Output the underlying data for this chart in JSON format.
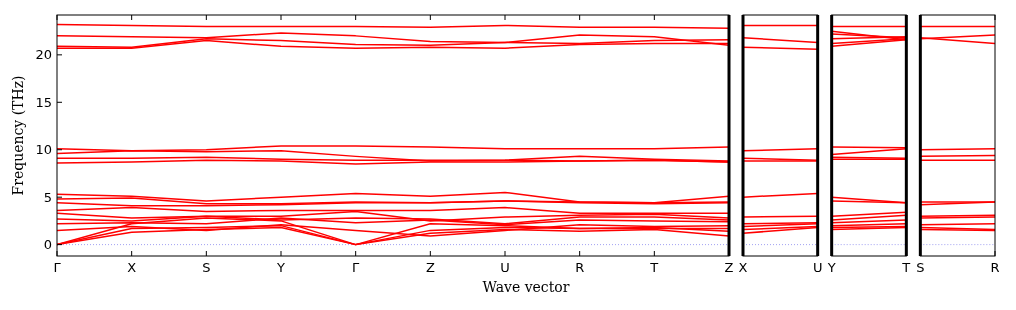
{
  "chart_data": [
    {
      "type": "line",
      "ylabel": "Frequency (THz)",
      "xlabel": "Wave vector",
      "categories": [
        "Γ",
        "X",
        "S",
        "Y",
        "Γ",
        "Z",
        "U",
        "R",
        "T",
        "Z"
      ],
      "ylim": [
        -1.2,
        24.2
      ],
      "yticks": [
        0,
        5,
        10,
        15,
        20
      ],
      "tick_labels": true,
      "ref_lines": [
        {
          "axis": "y",
          "value": 0,
          "color": "#8888ee",
          "line_style": "dotted"
        }
      ],
      "series": [
        {
          "color": "#ff0000",
          "values": [
            23.2,
            23.1,
            23.0,
            23.0,
            23.0,
            22.9,
            23.1,
            22.9,
            22.9,
            22.8
          ]
        },
        {
          "color": "#ff0000",
          "values": [
            22.0,
            21.9,
            21.8,
            22.3,
            22.0,
            21.4,
            21.3,
            22.1,
            21.9,
            21.0
          ]
        },
        {
          "color": "#ff0000",
          "values": [
            20.9,
            20.8,
            21.7,
            21.5,
            21.1,
            21.0,
            21.3,
            21.2,
            21.5,
            21.6
          ]
        },
        {
          "color": "#ff0000",
          "values": [
            20.7,
            20.7,
            21.5,
            20.9,
            20.7,
            20.8,
            20.7,
            21.1,
            21.2,
            21.2
          ]
        },
        {
          "color": "#ff0000",
          "values": [
            10.1,
            9.9,
            10.0,
            10.4,
            10.4,
            10.3,
            10.1,
            10.1,
            10.1,
            10.3
          ]
        },
        {
          "color": "#ff0000",
          "values": [
            9.6,
            9.9,
            9.8,
            9.9,
            9.3,
            8.8,
            8.9,
            9.3,
            9.0,
            8.8
          ]
        },
        {
          "color": "#ff0000",
          "values": [
            9.1,
            9.1,
            9.2,
            9.0,
            8.9,
            8.9,
            8.9,
            8.8,
            8.9,
            8.7
          ]
        },
        {
          "color": "#ff0000",
          "values": [
            8.6,
            8.7,
            8.9,
            8.8,
            8.5,
            8.7,
            8.7,
            8.8,
            8.9,
            8.7
          ]
        },
        {
          "color": "#ff0000",
          "values": [
            5.3,
            5.1,
            4.6,
            5.0,
            5.4,
            5.1,
            5.5,
            4.5,
            4.4,
            5.1
          ]
        },
        {
          "color": "#ff0000",
          "values": [
            4.8,
            4.9,
            4.3,
            4.3,
            4.5,
            4.4,
            4.6,
            4.5,
            4.4,
            4.5
          ]
        },
        {
          "color": "#ff0000",
          "values": [
            4.4,
            4.1,
            4.1,
            4.2,
            4.4,
            4.4,
            4.6,
            4.4,
            4.3,
            4.4
          ]
        },
        {
          "color": "#ff0000",
          "values": [
            0,
            1.3,
            1.6,
            1.8,
            0,
            1.2,
            1.6,
            1.4,
            1.6,
            0.9
          ]
        },
        {
          "color": "#ff0000",
          "values": [
            0,
            1.7,
            1.8,
            2.0,
            0,
            1.5,
            1.8,
            1.7,
            1.8,
            1.4
          ]
        },
        {
          "color": "#ff0000",
          "values": [
            0,
            2.2,
            2.8,
            2.5,
            0,
            2.2,
            2.0,
            1.7,
            1.7,
            1.7
          ]
        },
        {
          "color": "#ff0000",
          "values": [
            1.5,
            1.9,
            1.5,
            2.1,
            1.5,
            0.9,
            1.5,
            2.1,
            1.9,
            2.0
          ]
        },
        {
          "color": "#ff0000",
          "values": [
            2.2,
            2.3,
            2.2,
            2.8,
            2.3,
            2.6,
            2.1,
            2.6,
            2.5,
            2.4
          ]
        },
        {
          "color": "#ff0000",
          "values": [
            2.7,
            2.5,
            3.0,
            2.6,
            2.8,
            2.7,
            2.2,
            2.9,
            2.9,
            2.6
          ]
        },
        {
          "color": "#ff0000",
          "values": [
            3.3,
            2.8,
            3.0,
            3.0,
            3.5,
            2.5,
            2.9,
            3.1,
            3.2,
            2.8
          ]
        },
        {
          "color": "#ff0000",
          "values": [
            3.6,
            3.9,
            3.5,
            3.6,
            3.6,
            3.6,
            3.9,
            3.3,
            3.3,
            3.3
          ]
        }
      ]
    },
    {
      "type": "line",
      "categories": [
        "X",
        "U"
      ],
      "ylim": [
        -1.2,
        24.2
      ],
      "yticks": [
        0,
        5,
        10,
        15,
        20
      ],
      "tick_labels": "x",
      "ref_lines": [
        {
          "axis": "y",
          "value": 0,
          "color": "#8888ee",
          "line_style": "dotted"
        }
      ],
      "series": [
        {
          "color": "#ff0000",
          "values": [
            23.1,
            23.1
          ]
        },
        {
          "color": "#ff0000",
          "values": [
            21.8,
            21.3
          ]
        },
        {
          "color": "#ff0000",
          "values": [
            20.8,
            20.6
          ]
        },
        {
          "color": "#ff0000",
          "values": [
            9.9,
            10.1
          ]
        },
        {
          "color": "#ff0000",
          "values": [
            9.1,
            8.9
          ]
        },
        {
          "color": "#ff0000",
          "values": [
            8.8,
            8.8
          ]
        },
        {
          "color": "#ff0000",
          "values": [
            5.0,
            5.4
          ]
        },
        {
          "color": "#ff0000",
          "values": [
            2.9,
            3.0
          ]
        },
        {
          "color": "#ff0000",
          "values": [
            2.2,
            2.3
          ]
        },
        {
          "color": "#ff0000",
          "values": [
            1.9,
            2.2
          ]
        },
        {
          "color": "#ff0000",
          "values": [
            1.6,
            1.9
          ]
        },
        {
          "color": "#ff0000",
          "values": [
            1.2,
            1.8
          ]
        }
      ]
    },
    {
      "type": "line",
      "categories": [
        "Y",
        "T"
      ],
      "ylim": [
        -1.2,
        24.2
      ],
      "yticks": [
        0,
        5,
        10,
        15,
        20
      ],
      "tick_labels": "x",
      "ref_lines": [
        {
          "axis": "y",
          "value": 0,
          "color": "#8888ee",
          "line_style": "dotted"
        }
      ],
      "series": [
        {
          "color": "#ff0000",
          "values": [
            23.0,
            23.0
          ]
        },
        {
          "color": "#ff0000",
          "values": [
            22.5,
            21.6
          ]
        },
        {
          "color": "#ff0000",
          "values": [
            22.2,
            21.8
          ]
        },
        {
          "color": "#ff0000",
          "values": [
            21.7,
            21.9
          ]
        },
        {
          "color": "#ff0000",
          "values": [
            21.2,
            21.7
          ]
        },
        {
          "color": "#ff0000",
          "values": [
            20.9,
            21.6
          ]
        },
        {
          "color": "#ff0000",
          "values": [
            10.3,
            10.2
          ]
        },
        {
          "color": "#ff0000",
          "values": [
            9.5,
            10.1
          ]
        },
        {
          "color": "#ff0000",
          "values": [
            9.2,
            9.1
          ]
        },
        {
          "color": "#ff0000",
          "values": [
            9.0,
            9.0
          ]
        },
        {
          "color": "#ff0000",
          "values": [
            5.0,
            4.4
          ]
        },
        {
          "color": "#ff0000",
          "values": [
            4.6,
            4.4
          ]
        },
        {
          "color": "#ff0000",
          "values": [
            3.0,
            3.4
          ]
        },
        {
          "color": "#ff0000",
          "values": [
            2.6,
            3.1
          ]
        },
        {
          "color": "#ff0000",
          "values": [
            2.3,
            2.6
          ]
        },
        {
          "color": "#ff0000",
          "values": [
            2.0,
            2.2
          ]
        },
        {
          "color": "#ff0000",
          "values": [
            1.8,
            1.9
          ]
        },
        {
          "color": "#ff0000",
          "values": [
            1.6,
            1.8
          ]
        }
      ]
    },
    {
      "type": "line",
      "categories": [
        "S",
        "R"
      ],
      "ylim": [
        -1.2,
        24.2
      ],
      "yticks": [
        0,
        5,
        10,
        15,
        20
      ],
      "tick_labels": "x",
      "ref_lines": [
        {
          "axis": "y",
          "value": 0,
          "color": "#8888ee",
          "line_style": "dotted"
        }
      ],
      "series": [
        {
          "color": "#ff0000",
          "values": [
            23.0,
            23.0
          ]
        },
        {
          "color": "#ff0000",
          "values": [
            21.7,
            22.1
          ]
        },
        {
          "color": "#ff0000",
          "values": [
            21.8,
            21.2
          ]
        },
        {
          "color": "#ff0000",
          "values": [
            10.0,
            10.1
          ]
        },
        {
          "color": "#ff0000",
          "values": [
            9.3,
            9.4
          ]
        },
        {
          "color": "#ff0000",
          "values": [
            8.9,
            8.9
          ]
        },
        {
          "color": "#ff0000",
          "values": [
            4.5,
            4.5
          ]
        },
        {
          "color": "#ff0000",
          "values": [
            4.2,
            4.5
          ]
        },
        {
          "color": "#ff0000",
          "values": [
            3.0,
            3.1
          ]
        },
        {
          "color": "#ff0000",
          "values": [
            2.8,
            2.9
          ]
        },
        {
          "color": "#ff0000",
          "values": [
            2.1,
            2.2
          ]
        },
        {
          "color": "#ff0000",
          "values": [
            1.8,
            1.6
          ]
        },
        {
          "color": "#ff0000",
          "values": [
            1.6,
            1.5
          ]
        }
      ]
    }
  ]
}
